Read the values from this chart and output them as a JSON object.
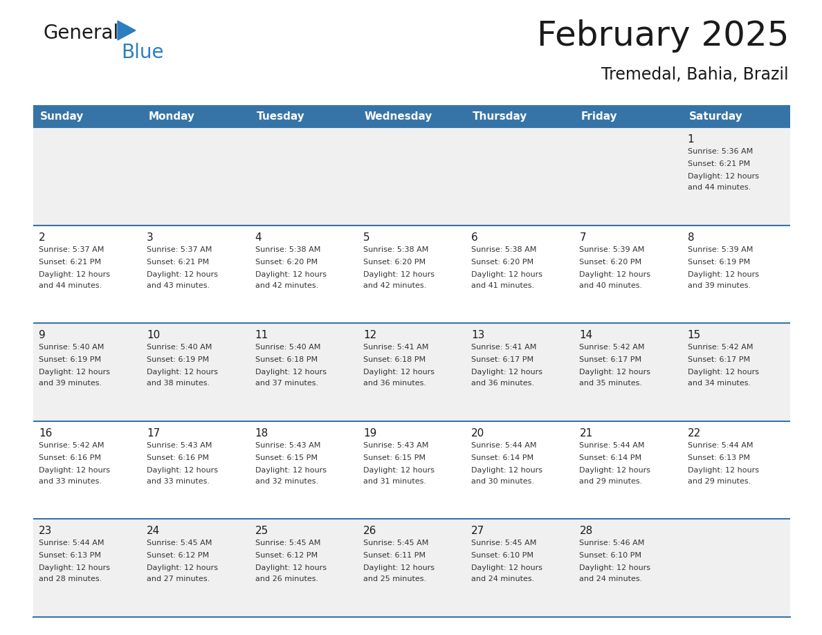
{
  "title": "February 2025",
  "subtitle": "Tremedal, Bahia, Brazil",
  "header_color": "#3674a8",
  "header_text_color": "#ffffff",
  "day_names": [
    "Sunday",
    "Monday",
    "Tuesday",
    "Wednesday",
    "Thursday",
    "Friday",
    "Saturday"
  ],
  "background_color": "#ffffff",
  "cell_bg_even": "#f0f0f0",
  "cell_bg_odd": "#ffffff",
  "divider_color": "#3674a8",
  "text_color": "#333333",
  "calendar_data": [
    [
      null,
      null,
      null,
      null,
      null,
      null,
      {
        "day": 1,
        "sunrise": "5:36 AM",
        "sunset": "6:21 PM",
        "daylight": "12 hours and 44 minutes."
      }
    ],
    [
      {
        "day": 2,
        "sunrise": "5:37 AM",
        "sunset": "6:21 PM",
        "daylight": "12 hours and 44 minutes."
      },
      {
        "day": 3,
        "sunrise": "5:37 AM",
        "sunset": "6:21 PM",
        "daylight": "12 hours and 43 minutes."
      },
      {
        "day": 4,
        "sunrise": "5:38 AM",
        "sunset": "6:20 PM",
        "daylight": "12 hours and 42 minutes."
      },
      {
        "day": 5,
        "sunrise": "5:38 AM",
        "sunset": "6:20 PM",
        "daylight": "12 hours and 42 minutes."
      },
      {
        "day": 6,
        "sunrise": "5:38 AM",
        "sunset": "6:20 PM",
        "daylight": "12 hours and 41 minutes."
      },
      {
        "day": 7,
        "sunrise": "5:39 AM",
        "sunset": "6:20 PM",
        "daylight": "12 hours and 40 minutes."
      },
      {
        "day": 8,
        "sunrise": "5:39 AM",
        "sunset": "6:19 PM",
        "daylight": "12 hours and 39 minutes."
      }
    ],
    [
      {
        "day": 9,
        "sunrise": "5:40 AM",
        "sunset": "6:19 PM",
        "daylight": "12 hours and 39 minutes."
      },
      {
        "day": 10,
        "sunrise": "5:40 AM",
        "sunset": "6:19 PM",
        "daylight": "12 hours and 38 minutes."
      },
      {
        "day": 11,
        "sunrise": "5:40 AM",
        "sunset": "6:18 PM",
        "daylight": "12 hours and 37 minutes."
      },
      {
        "day": 12,
        "sunrise": "5:41 AM",
        "sunset": "6:18 PM",
        "daylight": "12 hours and 36 minutes."
      },
      {
        "day": 13,
        "sunrise": "5:41 AM",
        "sunset": "6:17 PM",
        "daylight": "12 hours and 36 minutes."
      },
      {
        "day": 14,
        "sunrise": "5:42 AM",
        "sunset": "6:17 PM",
        "daylight": "12 hours and 35 minutes."
      },
      {
        "day": 15,
        "sunrise": "5:42 AM",
        "sunset": "6:17 PM",
        "daylight": "12 hours and 34 minutes."
      }
    ],
    [
      {
        "day": 16,
        "sunrise": "5:42 AM",
        "sunset": "6:16 PM",
        "daylight": "12 hours and 33 minutes."
      },
      {
        "day": 17,
        "sunrise": "5:43 AM",
        "sunset": "6:16 PM",
        "daylight": "12 hours and 33 minutes."
      },
      {
        "day": 18,
        "sunrise": "5:43 AM",
        "sunset": "6:15 PM",
        "daylight": "12 hours and 32 minutes."
      },
      {
        "day": 19,
        "sunrise": "5:43 AM",
        "sunset": "6:15 PM",
        "daylight": "12 hours and 31 minutes."
      },
      {
        "day": 20,
        "sunrise": "5:44 AM",
        "sunset": "6:14 PM",
        "daylight": "12 hours and 30 minutes."
      },
      {
        "day": 21,
        "sunrise": "5:44 AM",
        "sunset": "6:14 PM",
        "daylight": "12 hours and 29 minutes."
      },
      {
        "day": 22,
        "sunrise": "5:44 AM",
        "sunset": "6:13 PM",
        "daylight": "12 hours and 29 minutes."
      }
    ],
    [
      {
        "day": 23,
        "sunrise": "5:44 AM",
        "sunset": "6:13 PM",
        "daylight": "12 hours and 28 minutes."
      },
      {
        "day": 24,
        "sunrise": "5:45 AM",
        "sunset": "6:12 PM",
        "daylight": "12 hours and 27 minutes."
      },
      {
        "day": 25,
        "sunrise": "5:45 AM",
        "sunset": "6:12 PM",
        "daylight": "12 hours and 26 minutes."
      },
      {
        "day": 26,
        "sunrise": "5:45 AM",
        "sunset": "6:11 PM",
        "daylight": "12 hours and 25 minutes."
      },
      {
        "day": 27,
        "sunrise": "5:45 AM",
        "sunset": "6:10 PM",
        "daylight": "12 hours and 24 minutes."
      },
      {
        "day": 28,
        "sunrise": "5:46 AM",
        "sunset": "6:10 PM",
        "daylight": "12 hours and 24 minutes."
      },
      null
    ]
  ],
  "logo_general_color": "#1a1a1a",
  "logo_blue_color": "#2b7ec1",
  "logo_triangle_color": "#2b7ec1",
  "title_fontsize": 36,
  "subtitle_fontsize": 17,
  "header_fontsize": 11,
  "day_num_fontsize": 11,
  "cell_text_fontsize": 8
}
